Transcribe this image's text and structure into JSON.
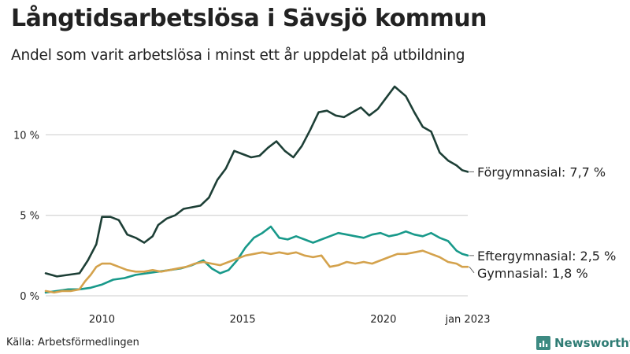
{
  "title": "Långtidsarbetslösa i Sävsjö kommun",
  "subtitle": "Andel som varit arbetslösa i minst ett år uppdelat på utbildning",
  "source": "Källa: Arbetsförmedlingen",
  "brand": "Newsworthy",
  "colors": {
    "forgymnasial": "#1d3f36",
    "eftergymnasial": "#18998a",
    "gymnasial": "#d4a24c",
    "grid": "#cccccc",
    "brand": "#3d8a82"
  },
  "chart_data": {
    "type": "line",
    "title": "Långtidsarbetslösa i Sävsjö kommun",
    "xlabel": "",
    "ylabel": "",
    "xlim": [
      2008.0,
      2023.0
    ],
    "ylim": [
      0,
      13
    ],
    "x_ticks": [
      {
        "value": 2010,
        "label": "2010"
      },
      {
        "value": 2015,
        "label": "2015"
      },
      {
        "value": 2020,
        "label": "2020"
      },
      {
        "value": 2023.0,
        "label": "jan 2023"
      }
    ],
    "y_ticks": [
      {
        "value": 0,
        "label": "0 %"
      },
      {
        "value": 5,
        "label": "5 %"
      },
      {
        "value": 10,
        "label": "10 %"
      }
    ],
    "grid": "horizontal",
    "series": [
      {
        "name": "Förgymnasial",
        "end_label": "Förgymnasial: 7,7 %",
        "color_key": "forgymnasial",
        "x": [
          2008.0,
          2008.4,
          2008.8,
          2009.2,
          2009.5,
          2009.8,
          2010.0,
          2010.3,
          2010.6,
          2010.9,
          2011.2,
          2011.5,
          2011.8,
          2012.0,
          2012.3,
          2012.6,
          2012.9,
          2013.2,
          2013.5,
          2013.8,
          2014.1,
          2014.4,
          2014.7,
          2015.0,
          2015.3,
          2015.6,
          2015.9,
          2016.2,
          2016.5,
          2016.8,
          2017.1,
          2017.4,
          2017.7,
          2018.0,
          2018.3,
          2018.6,
          2018.9,
          2019.2,
          2019.5,
          2019.8,
          2020.1,
          2020.4,
          2020.6,
          2020.8,
          2021.1,
          2021.4,
          2021.7,
          2022.0,
          2022.3,
          2022.6,
          2022.8,
          2023.0
        ],
        "values": [
          1.4,
          1.2,
          1.3,
          1.4,
          2.2,
          3.2,
          4.9,
          4.9,
          4.7,
          3.8,
          3.6,
          3.3,
          3.7,
          4.4,
          4.8,
          5.0,
          5.4,
          5.5,
          5.6,
          6.1,
          7.2,
          7.9,
          9.0,
          8.8,
          8.6,
          8.7,
          9.2,
          9.6,
          9.0,
          8.6,
          9.3,
          10.3,
          11.4,
          11.5,
          11.2,
          11.1,
          11.4,
          11.7,
          11.2,
          11.6,
          12.3,
          13.0,
          12.7,
          12.4,
          11.4,
          10.5,
          10.2,
          8.9,
          8.4,
          8.1,
          7.8,
          7.7
        ]
      },
      {
        "name": "Eftergymnasial",
        "end_label": "Eftergymnasial: 2,5 %",
        "color_key": "eftergymnasial",
        "x": [
          2008.0,
          2008.4,
          2008.8,
          2009.2,
          2009.6,
          2010.0,
          2010.4,
          2010.8,
          2011.2,
          2011.6,
          2012.0,
          2012.4,
          2012.8,
          2013.2,
          2013.6,
          2013.9,
          2014.2,
          2014.5,
          2014.8,
          2015.1,
          2015.4,
          2015.7,
          2016.0,
          2016.3,
          2016.6,
          2016.9,
          2017.2,
          2017.5,
          2017.8,
          2018.1,
          2018.4,
          2018.7,
          2019.0,
          2019.3,
          2019.6,
          2019.9,
          2020.2,
          2020.5,
          2020.8,
          2021.1,
          2021.4,
          2021.7,
          2022.0,
          2022.3,
          2022.6,
          2022.8,
          2023.0
        ],
        "values": [
          0.2,
          0.3,
          0.4,
          0.4,
          0.5,
          0.7,
          1.0,
          1.1,
          1.3,
          1.4,
          1.5,
          1.6,
          1.7,
          1.9,
          2.2,
          1.7,
          1.4,
          1.6,
          2.2,
          3.0,
          3.6,
          3.9,
          4.3,
          3.6,
          3.5,
          3.7,
          3.5,
          3.3,
          3.5,
          3.7,
          3.9,
          3.8,
          3.7,
          3.6,
          3.8,
          3.9,
          3.7,
          3.8,
          4.0,
          3.8,
          3.7,
          3.9,
          3.6,
          3.4,
          2.8,
          2.6,
          2.5
        ]
      },
      {
        "name": "Gymnasial",
        "end_label": "Gymnasial: 1,8 %",
        "color_key": "gymnasial",
        "x": [
          2008.0,
          2008.3,
          2008.6,
          2008.9,
          2009.2,
          2009.4,
          2009.6,
          2009.8,
          2010.0,
          2010.3,
          2010.6,
          2010.9,
          2011.2,
          2011.5,
          2011.8,
          2012.1,
          2012.4,
          2012.7,
          2013.0,
          2013.3,
          2013.6,
          2013.9,
          2014.2,
          2014.5,
          2014.8,
          2015.1,
          2015.4,
          2015.7,
          2016.0,
          2016.3,
          2016.6,
          2016.9,
          2017.2,
          2017.5,
          2017.8,
          2018.1,
          2018.4,
          2018.7,
          2019.0,
          2019.3,
          2019.6,
          2019.9,
          2020.2,
          2020.5,
          2020.8,
          2021.1,
          2021.4,
          2021.7,
          2022.0,
          2022.3,
          2022.6,
          2022.8,
          2023.0
        ],
        "values": [
          0.3,
          0.2,
          0.3,
          0.3,
          0.4,
          0.9,
          1.3,
          1.8,
          2.0,
          2.0,
          1.8,
          1.6,
          1.5,
          1.5,
          1.6,
          1.5,
          1.6,
          1.7,
          1.8,
          2.0,
          2.1,
          2.0,
          1.9,
          2.1,
          2.3,
          2.5,
          2.6,
          2.7,
          2.6,
          2.7,
          2.6,
          2.7,
          2.5,
          2.4,
          2.5,
          1.8,
          1.9,
          2.1,
          2.0,
          2.1,
          2.0,
          2.2,
          2.4,
          2.6,
          2.6,
          2.7,
          2.8,
          2.6,
          2.4,
          2.1,
          2.0,
          1.8,
          1.8
        ]
      }
    ]
  }
}
